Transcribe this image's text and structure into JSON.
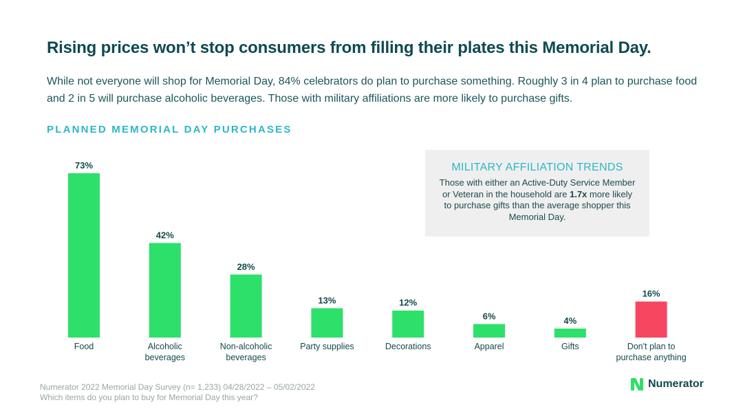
{
  "header": {
    "title": "Rising prices won’t stop consumers from filling their plates this Memorial Day.",
    "subtitle": "While not everyone will shop for Memorial Day, 84% celebrators do plan to purchase something. Roughly 3 in 4 plan to purchase food and 2 in 5 will purchase alcoholic beverages. Those with military affiliations are more likely to purchase gifts.",
    "section_label": "PLANNED MEMORIAL DAY PURCHASES"
  },
  "callout": {
    "title": "MILITARY AFFILIATION TRENDS",
    "body_before": "Those with either an Active-Duty Service Member or Veteran in the household are ",
    "body_emphasis": "1.7x",
    "body_after": " more likely to purchase gifts than the average shopper this Memorial Day."
  },
  "footer": {
    "source": "Numerator 2022 Memorial Day Survey (n= 1,233) 04/28/2022 – 05/02/2022",
    "question": "Which items do you plan to buy for Memorial Day this year?",
    "brand": "Numerator"
  },
  "colors": {
    "bar": "#2de06a",
    "bar_highlight": "#f74660",
    "brand": "#2de06a"
  },
  "chart_data": {
    "type": "bar",
    "title": "PLANNED MEMORIAL DAY PURCHASES",
    "xlabel": "",
    "ylabel": "",
    "ylim": [
      0,
      73
    ],
    "grid": false,
    "categories": [
      [
        "Food"
      ],
      [
        "Alcoholic",
        "beverages"
      ],
      [
        "Non-alcoholic",
        "beverages"
      ],
      [
        "Party supplies"
      ],
      [
        "Decorations"
      ],
      [
        "Apparel"
      ],
      [
        "Gifts"
      ],
      [
        "Don't plan to",
        "purchase anything"
      ]
    ],
    "values": [
      73,
      42,
      28,
      13,
      12,
      6,
      4,
      16
    ],
    "value_labels": [
      "73%",
      "42%",
      "28%",
      "13%",
      "12%",
      "6%",
      "4%",
      "16%"
    ],
    "highlight_index": 7
  }
}
